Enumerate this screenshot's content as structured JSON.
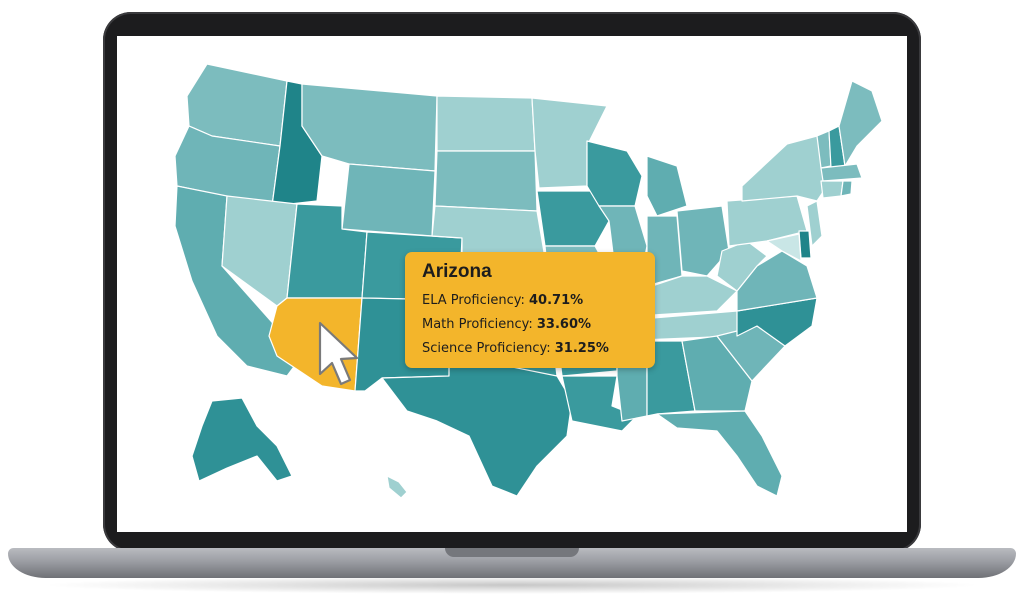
{
  "colors": {
    "highlight": "#f3b52b",
    "shade_light": "#9fd0d0",
    "shade_mid": "#6fb5b8",
    "shade_dark": "#3a9a9e",
    "shade_darkest": "#1f8489",
    "screen_bezel": "#1c1c1e"
  },
  "map": {
    "hovered_state": "Arizona"
  },
  "tooltip": {
    "title": "Arizona",
    "rows": [
      {
        "label": "ELA Proficiency:",
        "value": "40.71%"
      },
      {
        "label": "Math Proficiency:",
        "value": "33.60%"
      },
      {
        "label": "Science Proficiency:",
        "value": "31.25%"
      }
    ]
  },
  "cursor": {
    "icon": "arrow-cursor-icon"
  }
}
